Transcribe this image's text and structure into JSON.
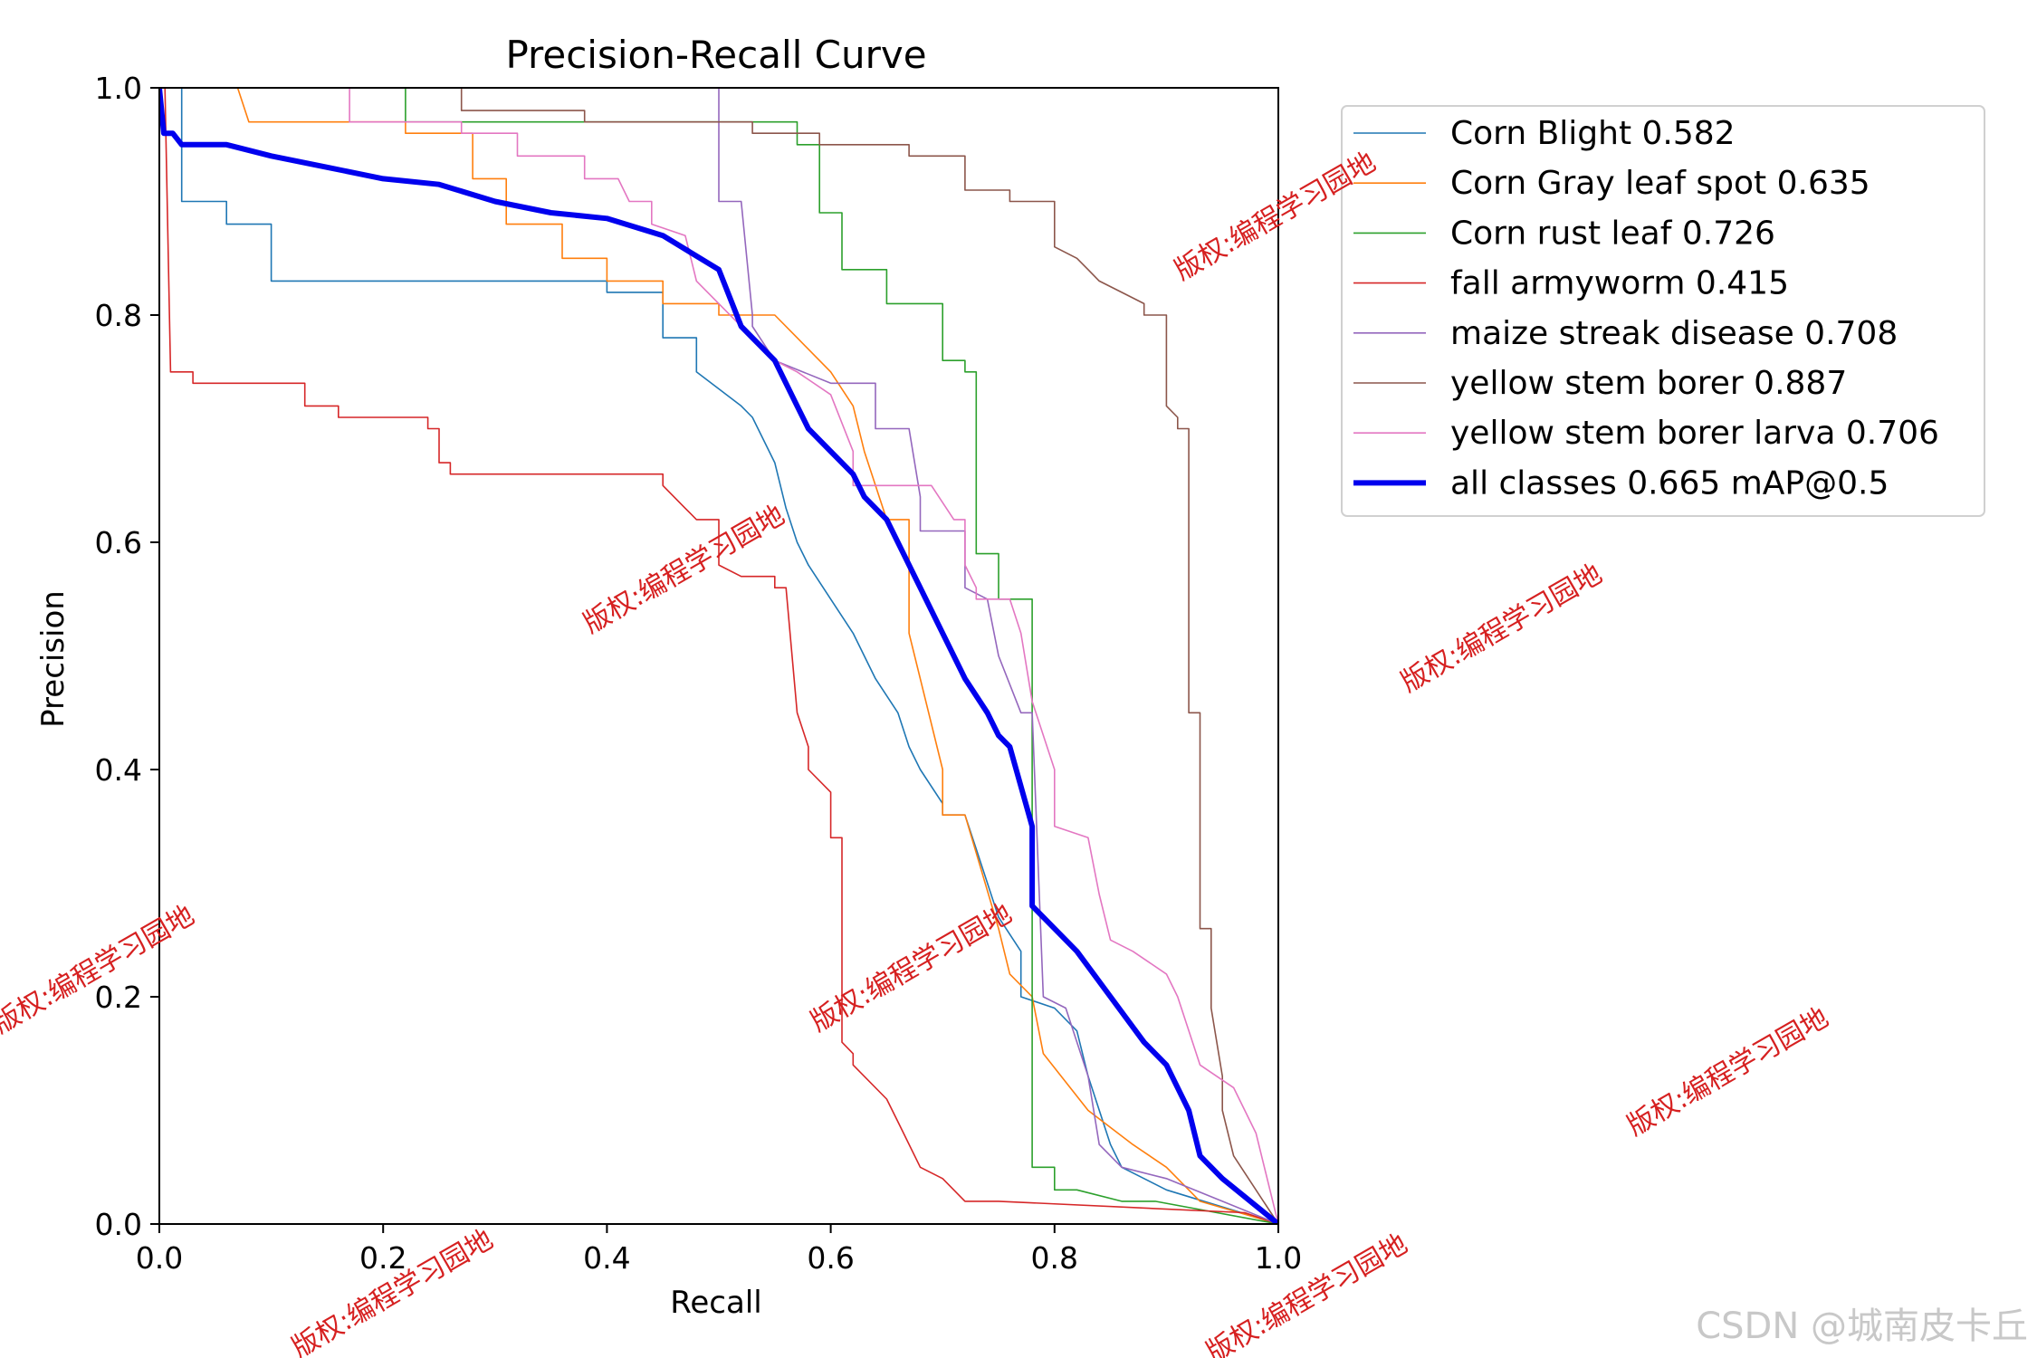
{
  "chart_data": {
    "type": "line",
    "title": "Precision-Recall Curve",
    "xlabel": "Recall",
    "ylabel": "Precision",
    "xlim": [
      0,
      1
    ],
    "ylim": [
      0,
      1
    ],
    "xticks": [
      "0.0",
      "0.2",
      "0.4",
      "0.6",
      "0.8",
      "1.0"
    ],
    "yticks": [
      "0.0",
      "0.2",
      "0.4",
      "0.6",
      "0.8",
      "1.0"
    ],
    "legend_position": "outside-right",
    "series": [
      {
        "name": "Corn Blight",
        "label": "Corn Blight 0.582",
        "color": "#1f77b4",
        "width": 1.6,
        "x": [
          0,
          0.01,
          0.02,
          0.02,
          0.06,
          0.06,
          0.1,
          0.1,
          0.4,
          0.4,
          0.45,
          0.45,
          0.48,
          0.48,
          0.52,
          0.53,
          0.55,
          0.56,
          0.57,
          0.58,
          0.6,
          0.62,
          0.64,
          0.66,
          0.67,
          0.68,
          0.7,
          0.7,
          0.72,
          0.73,
          0.75,
          0.77,
          0.77,
          0.8,
          0.82,
          0.83,
          0.85,
          0.86,
          0.9,
          1.0
        ],
        "y": [
          1,
          1,
          1,
          0.9,
          0.9,
          0.88,
          0.88,
          0.83,
          0.83,
          0.82,
          0.82,
          0.78,
          0.78,
          0.75,
          0.72,
          0.71,
          0.67,
          0.63,
          0.6,
          0.58,
          0.55,
          0.52,
          0.48,
          0.45,
          0.42,
          0.4,
          0.37,
          0.36,
          0.36,
          0.33,
          0.27,
          0.24,
          0.2,
          0.19,
          0.17,
          0.13,
          0.07,
          0.05,
          0.03,
          0.0
        ]
      },
      {
        "name": "Corn Gray leaf spot",
        "label": "Corn Gray leaf spot 0.635",
        "color": "#ff7f0e",
        "width": 1.6,
        "x": [
          0.07,
          0.07,
          0.08,
          0.08,
          0.22,
          0.22,
          0.28,
          0.28,
          0.31,
          0.31,
          0.36,
          0.36,
          0.4,
          0.4,
          0.45,
          0.45,
          0.5,
          0.5,
          0.55,
          0.57,
          0.6,
          0.62,
          0.63,
          0.65,
          0.67,
          0.67,
          0.7,
          0.7,
          0.72,
          0.75,
          0.76,
          0.78,
          0.79,
          0.83,
          0.87,
          0.9,
          0.93,
          1.0
        ],
        "y": [
          1,
          1,
          0.97,
          0.97,
          0.97,
          0.96,
          0.96,
          0.92,
          0.92,
          0.88,
          0.88,
          0.85,
          0.85,
          0.83,
          0.83,
          0.81,
          0.81,
          0.8,
          0.8,
          0.78,
          0.75,
          0.72,
          0.68,
          0.62,
          0.62,
          0.52,
          0.4,
          0.36,
          0.36,
          0.26,
          0.22,
          0.2,
          0.15,
          0.1,
          0.07,
          0.05,
          0.02,
          0.0
        ]
      },
      {
        "name": "Corn rust leaf",
        "label": "Corn rust leaf 0.726",
        "color": "#2ca02c",
        "width": 1.6,
        "x": [
          0.18,
          0.18,
          0.22,
          0.22,
          0.4,
          0.4,
          0.57,
          0.57,
          0.59,
          0.59,
          0.61,
          0.61,
          0.65,
          0.65,
          0.7,
          0.7,
          0.72,
          0.72,
          0.73,
          0.73,
          0.75,
          0.75,
          0.78,
          0.78,
          0.78,
          0.8,
          0.8,
          0.82,
          0.82,
          0.86,
          0.89,
          1.0
        ],
        "y": [
          1,
          1,
          1,
          0.97,
          0.97,
          0.97,
          0.97,
          0.95,
          0.95,
          0.89,
          0.89,
          0.84,
          0.84,
          0.81,
          0.81,
          0.76,
          0.76,
          0.75,
          0.75,
          0.59,
          0.59,
          0.55,
          0.55,
          0.3,
          0.05,
          0.05,
          0.03,
          0.03,
          0.03,
          0.02,
          0.02,
          0.0
        ]
      },
      {
        "name": "fall armyworm",
        "label": "fall armyworm 0.415",
        "color": "#d62728",
        "width": 1.6,
        "x": [
          0.005,
          0.005,
          0.01,
          0.01,
          0.03,
          0.03,
          0.13,
          0.13,
          0.16,
          0.16,
          0.18,
          0.18,
          0.24,
          0.24,
          0.25,
          0.25,
          0.26,
          0.26,
          0.31,
          0.31,
          0.38,
          0.38,
          0.45,
          0.45,
          0.47,
          0.48,
          0.5,
          0.5,
          0.52,
          0.52,
          0.55,
          0.55,
          0.56,
          0.57,
          0.58,
          0.58,
          0.6,
          0.6,
          0.61,
          0.61,
          0.62,
          0.62,
          0.65,
          0.66,
          0.68,
          0.7,
          0.72,
          0.75,
          0.97,
          1.0
        ],
        "y": [
          1,
          1,
          0.75,
          0.75,
          0.75,
          0.74,
          0.74,
          0.72,
          0.72,
          0.71,
          0.71,
          0.71,
          0.71,
          0.7,
          0.7,
          0.67,
          0.67,
          0.66,
          0.66,
          0.66,
          0.66,
          0.66,
          0.66,
          0.65,
          0.63,
          0.62,
          0.62,
          0.58,
          0.57,
          0.57,
          0.57,
          0.56,
          0.56,
          0.45,
          0.42,
          0.4,
          0.38,
          0.34,
          0.34,
          0.16,
          0.15,
          0.14,
          0.11,
          0.09,
          0.05,
          0.04,
          0.02,
          0.02,
          0.01,
          0.0
        ]
      },
      {
        "name": "maize streak disease",
        "label": "maize streak disease 0.708",
        "color": "#9467bd",
        "width": 1.6,
        "x": [
          0.5,
          0.5,
          0.52,
          0.53,
          0.53,
          0.55,
          0.6,
          0.61,
          0.64,
          0.64,
          0.67,
          0.68,
          0.68,
          0.72,
          0.72,
          0.74,
          0.75,
          0.75,
          0.77,
          0.78,
          0.79,
          0.79,
          0.81,
          0.83,
          0.84,
          0.86,
          0.9,
          0.95,
          1.0
        ],
        "y": [
          1,
          0.9,
          0.9,
          0.8,
          0.79,
          0.76,
          0.74,
          0.74,
          0.74,
          0.7,
          0.7,
          0.64,
          0.61,
          0.61,
          0.56,
          0.55,
          0.5,
          0.5,
          0.45,
          0.45,
          0.2,
          0.2,
          0.19,
          0.13,
          0.07,
          0.05,
          0.04,
          0.02,
          0.0
        ]
      },
      {
        "name": "yellow stem borer",
        "label": "yellow stem borer 0.887",
        "color": "#8c564b",
        "width": 1.6,
        "x": [
          0.27,
          0.27,
          0.38,
          0.38,
          0.44,
          0.44,
          0.53,
          0.53,
          0.59,
          0.59,
          0.67,
          0.67,
          0.72,
          0.72,
          0.73,
          0.73,
          0.76,
          0.76,
          0.8,
          0.8,
          0.82,
          0.83,
          0.84,
          0.86,
          0.88,
          0.88,
          0.9,
          0.9,
          0.91,
          0.91,
          0.92,
          0.92,
          0.93,
          0.93,
          0.94,
          0.94,
          0.95,
          0.95,
          0.96,
          1.0
        ],
        "y": [
          1,
          0.98,
          0.98,
          0.97,
          0.97,
          0.97,
          0.97,
          0.96,
          0.96,
          0.95,
          0.95,
          0.94,
          0.94,
          0.91,
          0.91,
          0.91,
          0.91,
          0.9,
          0.9,
          0.86,
          0.85,
          0.84,
          0.83,
          0.82,
          0.81,
          0.8,
          0.8,
          0.72,
          0.71,
          0.7,
          0.7,
          0.45,
          0.45,
          0.26,
          0.26,
          0.19,
          0.13,
          0.1,
          0.06,
          0.0
        ]
      },
      {
        "name": "yellow stem borer larva",
        "label": "yellow stem borer larva 0.706",
        "color": "#e377c2",
        "width": 1.6,
        "x": [
          0.16,
          0.17,
          0.17,
          0.27,
          0.27,
          0.32,
          0.32,
          0.38,
          0.38,
          0.41,
          0.42,
          0.44,
          0.44,
          0.47,
          0.48,
          0.5,
          0.52,
          0.53,
          0.54,
          0.55,
          0.57,
          0.6,
          0.62,
          0.62,
          0.65,
          0.67,
          0.69,
          0.71,
          0.72,
          0.72,
          0.73,
          0.73,
          0.75,
          0.76,
          0.77,
          0.78,
          0.8,
          0.8,
          0.83,
          0.84,
          0.85,
          0.87,
          0.9,
          0.91,
          0.93,
          0.96,
          0.98,
          1.0
        ],
        "y": [
          1,
          1,
          0.97,
          0.97,
          0.96,
          0.96,
          0.94,
          0.94,
          0.92,
          0.92,
          0.9,
          0.9,
          0.88,
          0.87,
          0.83,
          0.81,
          0.79,
          0.78,
          0.77,
          0.76,
          0.75,
          0.73,
          0.68,
          0.65,
          0.65,
          0.65,
          0.65,
          0.62,
          0.62,
          0.58,
          0.56,
          0.55,
          0.55,
          0.55,
          0.52,
          0.46,
          0.4,
          0.35,
          0.34,
          0.29,
          0.25,
          0.24,
          0.22,
          0.2,
          0.14,
          0.12,
          0.08,
          0.0
        ]
      },
      {
        "name": "all classes",
        "label": "all classes 0.665 mAP@0.5",
        "color": "#0000ee",
        "width": 6,
        "x": [
          0,
          0.004,
          0.008,
          0.012,
          0.02,
          0.06,
          0.1,
          0.15,
          0.2,
          0.25,
          0.3,
          0.35,
          0.4,
          0.45,
          0.5,
          0.52,
          0.53,
          0.55,
          0.57,
          0.58,
          0.6,
          0.62,
          0.63,
          0.65,
          0.67,
          0.68,
          0.7,
          0.72,
          0.74,
          0.75,
          0.76,
          0.78,
          0.78,
          0.79,
          0.8,
          0.82,
          0.85,
          0.88,
          0.9,
          0.92,
          0.93,
          0.95,
          1.0
        ],
        "y": [
          1,
          0.96,
          0.96,
          0.96,
          0.95,
          0.95,
          0.94,
          0.93,
          0.92,
          0.915,
          0.9,
          0.89,
          0.885,
          0.87,
          0.84,
          0.79,
          0.78,
          0.76,
          0.72,
          0.7,
          0.68,
          0.66,
          0.64,
          0.62,
          0.58,
          0.56,
          0.52,
          0.48,
          0.45,
          0.43,
          0.42,
          0.35,
          0.28,
          0.27,
          0.26,
          0.24,
          0.2,
          0.16,
          0.14,
          0.1,
          0.06,
          0.04,
          0.0
        ]
      }
    ]
  },
  "watermark": {
    "text": "版权:编程学习园地"
  },
  "credit": {
    "text": "CSDN @城南皮卡丘"
  }
}
